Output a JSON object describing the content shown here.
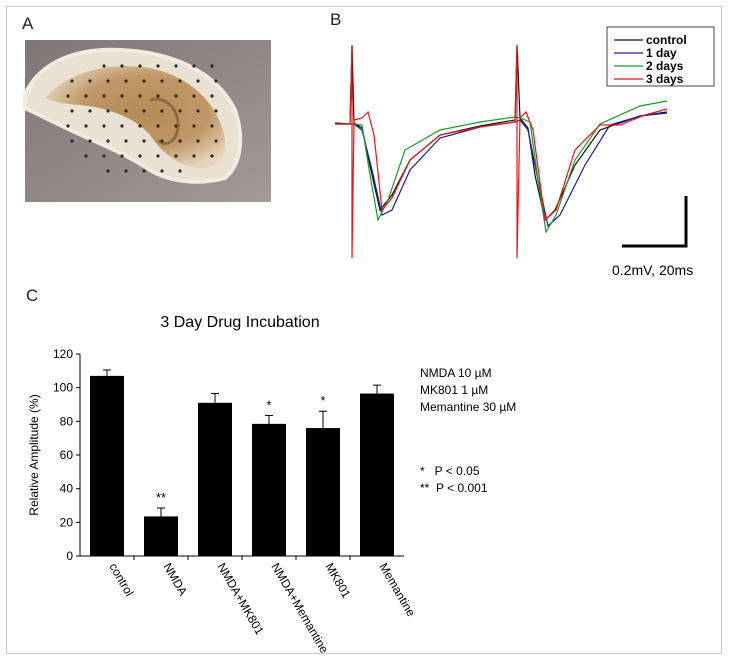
{
  "panels": {
    "a": "A",
    "b": "B",
    "c": "C"
  },
  "traces": {
    "legend": [
      {
        "label": "control",
        "color": "#111111"
      },
      {
        "label": "1 day",
        "color": "#1a1aa8"
      },
      {
        "label": "2 days",
        "color": "#1a9a2a"
      },
      {
        "label": "3 days",
        "color": "#e8141a"
      }
    ],
    "scale_bar": "0.2mV, 20ms"
  },
  "notes": {
    "conc": [
      "NMDA 10 µM",
      "MK801 1 µM",
      "Memantine 30 µM"
    ],
    "sig": [
      "*   P < 0.05",
      "**  P < 0.001"
    ]
  },
  "chart_data": {
    "type": "bar",
    "title": "3 Day Drug Incubation",
    "xlabel": "",
    "ylabel": "Relative Amplitude (%)",
    "ylim": [
      0,
      120
    ],
    "yticks": [
      0,
      20,
      40,
      60,
      80,
      100,
      120
    ],
    "categories": [
      "control",
      "NMDA",
      "NMDA+MK801",
      "NMDA+Memantine",
      "MK801",
      "Memantine"
    ],
    "values": [
      107,
      23.5,
      91,
      78.5,
      76,
      96.5
    ],
    "errors": [
      3.5,
      5,
      5.5,
      5,
      10,
      5
    ],
    "significance": [
      "",
      "**",
      "",
      "*",
      "*",
      ""
    ],
    "bar_color": "#000000"
  }
}
